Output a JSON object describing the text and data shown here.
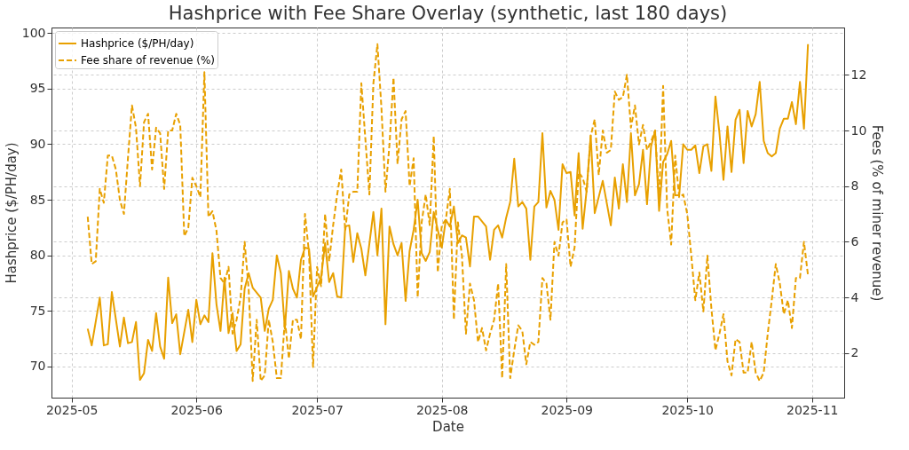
{
  "chart_data": {
    "type": "line",
    "title": "Hashprice with Fee Share Overlay (synthetic, last 180 days)",
    "xlabel": "Date",
    "ylabel": "Hashprice ($/PH/day)",
    "y2label": "Fees (% of miner revenue)",
    "xlim": [
      "2025-04-26",
      "2025-11-09"
    ],
    "xticks": [
      "2025-05",
      "2025-06",
      "2025-07",
      "2025-08",
      "2025-09",
      "2025-10",
      "2025-11"
    ],
    "ylim": [
      67.2,
      100.5
    ],
    "yticks": [
      70,
      75,
      80,
      85,
      90,
      95,
      100
    ],
    "y2lim": [
      0.4,
      13.7
    ],
    "y2ticks": [
      2,
      4,
      6,
      8,
      10,
      12
    ],
    "grid": true,
    "legend": "top left",
    "series": [
      {
        "name": "Hashprice ($/PH/day)",
        "color": "#e8a000",
        "line_style": "solid",
        "x": [
          "2025-05-05",
          "2025-05-06",
          "2025-05-08",
          "2025-05-09",
          "2025-05-10",
          "2025-05-11",
          "2025-05-13",
          "2025-05-14",
          "2025-05-15",
          "2025-05-16",
          "2025-05-17",
          "2025-05-18",
          "2025-05-19",
          "2025-05-20",
          "2025-05-21",
          "2025-05-22",
          "2025-05-23",
          "2025-05-24",
          "2025-05-25",
          "2025-05-26",
          "2025-05-27",
          "2025-05-28",
          "2025-05-30",
          "2025-05-31",
          "2025-06-01",
          "2025-06-02",
          "2025-06-03",
          "2025-06-04",
          "2025-06-05",
          "2025-06-06",
          "2025-06-07",
          "2025-06-08",
          "2025-06-09",
          "2025-06-10",
          "2025-06-11",
          "2025-06-12",
          "2025-06-13",
          "2025-06-14",
          "2025-06-15",
          "2025-06-17",
          "2025-06-18",
          "2025-06-19",
          "2025-06-20",
          "2025-06-21",
          "2025-06-22",
          "2025-06-23",
          "2025-06-24",
          "2025-06-25",
          "2025-06-26",
          "2025-06-27",
          "2025-06-28",
          "2025-06-29",
          "2025-06-30",
          "2025-07-02",
          "2025-07-03",
          "2025-07-04",
          "2025-07-05",
          "2025-07-06",
          "2025-07-07",
          "2025-07-08",
          "2025-07-09",
          "2025-07-10",
          "2025-07-11",
          "2025-07-12",
          "2025-07-13",
          "2025-07-15",
          "2025-07-16",
          "2025-07-17",
          "2025-07-18",
          "2025-07-19",
          "2025-07-20",
          "2025-07-21",
          "2025-07-22",
          "2025-07-23",
          "2025-07-24",
          "2025-07-25",
          "2025-07-26",
          "2025-07-27",
          "2025-07-28",
          "2025-07-29",
          "2025-07-30",
          "2025-07-31",
          "2025-08-01",
          "2025-08-02",
          "2025-08-03",
          "2025-08-04",
          "2025-08-05",
          "2025-08-06",
          "2025-08-07",
          "2025-08-08",
          "2025-08-09",
          "2025-08-10",
          "2025-08-12",
          "2025-08-13",
          "2025-08-14",
          "2025-08-15",
          "2025-08-16",
          "2025-08-17",
          "2025-08-18",
          "2025-08-19",
          "2025-08-20",
          "2025-08-21",
          "2025-08-22",
          "2025-08-23",
          "2025-08-24",
          "2025-08-25",
          "2025-08-26",
          "2025-08-27",
          "2025-08-28",
          "2025-08-29",
          "2025-08-30",
          "2025-08-31",
          "2025-09-01",
          "2025-09-02",
          "2025-09-03",
          "2025-09-04",
          "2025-09-05",
          "2025-09-06",
          "2025-09-07",
          "2025-09-08",
          "2025-09-10",
          "2025-09-12",
          "2025-09-13",
          "2025-09-14",
          "2025-09-15",
          "2025-09-16",
          "2025-09-17",
          "2025-09-18",
          "2025-09-19",
          "2025-09-20",
          "2025-09-21",
          "2025-09-22",
          "2025-09-23",
          "2025-09-24",
          "2025-09-25",
          "2025-09-26",
          "2025-09-27",
          "2025-09-28",
          "2025-09-29",
          "2025-09-30",
          "2025-10-01",
          "2025-10-02",
          "2025-10-03",
          "2025-10-04",
          "2025-10-05",
          "2025-10-06",
          "2025-10-07",
          "2025-10-08",
          "2025-10-09",
          "2025-10-10",
          "2025-10-11",
          "2025-10-12",
          "2025-10-13",
          "2025-10-14",
          "2025-10-15",
          "2025-10-16",
          "2025-10-17",
          "2025-10-18",
          "2025-10-19",
          "2025-10-20",
          "2025-10-21",
          "2025-10-22",
          "2025-10-23",
          "2025-10-24",
          "2025-10-25",
          "2025-10-26",
          "2025-10-27",
          "2025-10-28",
          "2025-10-29",
          "2025-10-30",
          "2025-10-31"
        ],
        "values": [
          73.4,
          71.9,
          76.2,
          71.9,
          72.0,
          76.7,
          71.8,
          74.4,
          72.1,
          72.2,
          74.0,
          68.8,
          69.4,
          72.4,
          71.4,
          74.8,
          71.8,
          70.7,
          78.0,
          73.9,
          74.7,
          71.1,
          75.1,
          72.2,
          76.0,
          73.8,
          74.6,
          74.0,
          80.2,
          75.6,
          73.2,
          78.0,
          73.0,
          74.8,
          71.4,
          72.0,
          77.0,
          78.4,
          77.1,
          76.2,
          73.2,
          75.2,
          76.0,
          80.0,
          78.4,
          73.4,
          78.6,
          77.0,
          76.2,
          79.6,
          80.7,
          80.6,
          76.3,
          78.0,
          81.1,
          77.6,
          78.4,
          76.3,
          76.2,
          82.6,
          82.7,
          79.4,
          82.0,
          80.6,
          78.2,
          83.9,
          80.0,
          84.2,
          73.8,
          82.6,
          81.0,
          80.0,
          81.1,
          75.9,
          80.4,
          82.3,
          85.0,
          80.2,
          79.5,
          80.3,
          83.9,
          82.3,
          80.7,
          83.2,
          82.6,
          84.4,
          81.1,
          81.8,
          81.6,
          79.0,
          83.5,
          83.5,
          82.6,
          79.6,
          82.3,
          82.7,
          81.6,
          83.4,
          84.8,
          88.7,
          84.4,
          84.8,
          84.2,
          79.6,
          84.4,
          84.8,
          91.0,
          84.3,
          85.8,
          85.0,
          82.3,
          88.2,
          87.4,
          87.5,
          83.6,
          89.2,
          82.4,
          85.9,
          90.8,
          83.8,
          86.7,
          82.7,
          87.0,
          84.2,
          88.2,
          84.8,
          91.0,
          85.4,
          86.4,
          89.5,
          84.6,
          89.8,
          91.2,
          84.0,
          88.4,
          89.1,
          90.3,
          85.4,
          85.4,
          90.0,
          89.5,
          89.5,
          89.9,
          87.4,
          89.8,
          90.0,
          87.6,
          94.3,
          91.0,
          86.8,
          91.6,
          87.5,
          92.2,
          93.1,
          88.3,
          93.0,
          91.6,
          92.7,
          95.6,
          90.3,
          89.2,
          88.9,
          89.2,
          91.4,
          92.3,
          92.3,
          93.8,
          91.8,
          95.6,
          91.4,
          99.0
        ]
      },
      {
        "name": "Fee share of revenue (%)",
        "color": "#e8a000",
        "line_style": "dashed",
        "axis": "y2",
        "x": [
          "2025-05-05",
          "2025-05-06",
          "2025-05-07",
          "2025-05-08",
          "2025-05-09",
          "2025-05-10",
          "2025-05-11",
          "2025-05-12",
          "2025-05-13",
          "2025-05-14",
          "2025-05-15",
          "2025-05-16",
          "2025-05-17",
          "2025-05-18",
          "2025-05-19",
          "2025-05-20",
          "2025-05-21",
          "2025-05-22",
          "2025-05-23",
          "2025-05-24",
          "2025-05-25",
          "2025-05-26",
          "2025-05-27",
          "2025-05-28",
          "2025-05-29",
          "2025-05-30",
          "2025-05-31",
          "2025-06-01",
          "2025-06-02",
          "2025-06-03",
          "2025-06-04",
          "2025-06-05",
          "2025-06-06",
          "2025-06-07",
          "2025-06-08",
          "2025-06-09",
          "2025-06-10",
          "2025-06-11",
          "2025-06-12",
          "2025-06-13",
          "2025-06-14",
          "2025-06-15",
          "2025-06-16",
          "2025-06-17",
          "2025-06-18",
          "2025-06-19",
          "2025-06-20",
          "2025-06-21",
          "2025-06-22",
          "2025-06-23",
          "2025-06-24",
          "2025-06-25",
          "2025-06-26",
          "2025-06-27",
          "2025-06-28",
          "2025-06-29",
          "2025-06-30",
          "2025-07-01",
          "2025-07-02",
          "2025-07-03",
          "2025-07-04",
          "2025-07-05",
          "2025-07-06",
          "2025-07-07",
          "2025-07-08",
          "2025-07-09",
          "2025-07-10",
          "2025-07-11",
          "2025-07-12",
          "2025-07-13",
          "2025-07-14",
          "2025-07-15",
          "2025-07-16",
          "2025-07-17",
          "2025-07-18",
          "2025-07-19",
          "2025-07-20",
          "2025-07-21",
          "2025-07-22",
          "2025-07-23",
          "2025-07-24",
          "2025-07-25",
          "2025-07-26",
          "2025-07-27",
          "2025-07-28",
          "2025-07-29",
          "2025-07-30",
          "2025-07-31",
          "2025-08-01",
          "2025-08-02",
          "2025-08-03",
          "2025-08-04",
          "2025-08-05",
          "2025-08-06",
          "2025-08-07",
          "2025-08-08",
          "2025-08-09",
          "2025-08-10",
          "2025-08-11",
          "2025-08-12",
          "2025-08-13",
          "2025-08-14",
          "2025-08-15",
          "2025-08-16",
          "2025-08-17",
          "2025-08-18",
          "2025-08-19",
          "2025-08-20",
          "2025-08-21",
          "2025-08-22",
          "2025-08-23",
          "2025-08-24",
          "2025-08-25",
          "2025-08-26",
          "2025-08-27",
          "2025-08-28",
          "2025-08-29",
          "2025-08-30",
          "2025-08-31",
          "2025-09-01",
          "2025-09-02",
          "2025-09-03",
          "2025-09-04",
          "2025-09-05",
          "2025-09-06",
          "2025-09-07",
          "2025-09-08",
          "2025-09-09",
          "2025-09-10",
          "2025-09-11",
          "2025-09-12",
          "2025-09-13",
          "2025-09-14",
          "2025-09-15",
          "2025-09-16",
          "2025-09-17",
          "2025-09-18",
          "2025-09-19",
          "2025-09-20",
          "2025-09-21",
          "2025-09-22",
          "2025-09-23",
          "2025-09-24",
          "2025-09-25",
          "2025-09-26",
          "2025-09-27",
          "2025-09-28",
          "2025-09-29",
          "2025-09-30",
          "2025-10-01",
          "2025-10-02",
          "2025-10-03",
          "2025-10-04",
          "2025-10-05",
          "2025-10-06",
          "2025-10-07",
          "2025-10-08",
          "2025-10-09",
          "2025-10-10",
          "2025-10-11",
          "2025-10-12",
          "2025-10-13",
          "2025-10-14",
          "2025-10-15",
          "2025-10-16",
          "2025-10-17",
          "2025-10-18",
          "2025-10-19",
          "2025-10-20",
          "2025-10-21",
          "2025-10-22",
          "2025-10-23",
          "2025-10-24",
          "2025-10-25",
          "2025-10-26",
          "2025-10-27",
          "2025-10-28",
          "2025-10-29",
          "2025-10-30",
          "2025-10-31"
        ],
        "values": [
          6.9,
          5.2,
          5.3,
          7.9,
          7.4,
          9.1,
          9.1,
          8.6,
          7.5,
          7.0,
          9.0,
          10.9,
          10.1,
          8.0,
          10.3,
          10.6,
          8.6,
          10.1,
          9.9,
          7.9,
          10.0,
          10.0,
          10.6,
          10.2,
          6.2,
          6.5,
          8.3,
          8.0,
          7.6,
          12.1,
          6.9,
          7.1,
          6.4,
          4.7,
          4.5,
          5.1,
          2.7,
          3.2,
          4.0,
          6.0,
          4.3,
          1.0,
          3.2,
          1.0,
          1.2,
          3.2,
          2.4,
          1.1,
          1.1,
          3.2,
          1.8,
          3.2,
          3.2,
          2.5,
          7.0,
          5.6,
          1.5,
          5.1,
          4.4,
          7.0,
          5.3,
          6.6,
          7.7,
          8.6,
          6.4,
          7.7,
          7.8,
          7.8,
          11.7,
          9.7,
          7.7,
          11.7,
          13.1,
          10.8,
          7.8,
          9.5,
          11.9,
          8.8,
          10.4,
          10.7,
          8.0,
          9.0,
          4.0,
          6.7,
          7.7,
          6.6,
          9.8,
          4.9,
          6.6,
          6.8,
          7.9,
          3.2,
          6.7,
          5.5,
          2.7,
          4.5,
          3.9,
          2.4,
          2.9,
          2.1,
          2.7,
          3.2,
          4.5,
          1.1,
          5.2,
          1.1,
          2.1,
          3.0,
          2.8,
          1.6,
          2.4,
          2.3,
          2.4,
          4.7,
          4.5,
          3.2,
          6.0,
          5.5,
          6.7,
          6.8,
          5.1,
          5.8,
          8.5,
          8.3,
          7.8,
          9.8,
          10.4,
          8.4,
          10.0,
          9.2,
          9.3,
          11.4,
          11.1,
          11.2,
          12.0,
          10.1,
          10.9,
          9.5,
          10.2,
          9.3,
          9.6,
          10.0,
          7.5,
          11.6,
          7.2,
          5.9,
          9.1,
          7.6,
          7.7,
          7.0,
          5.5,
          3.9,
          4.9,
          3.5,
          5.5,
          3.6,
          2.1,
          2.7,
          3.4,
          1.7,
          1.2,
          2.5,
          2.4,
          1.3,
          1.3,
          2.4,
          1.3,
          1.0,
          1.3,
          2.7,
          3.9,
          5.2,
          4.5,
          3.4,
          3.9,
          2.9,
          4.7,
          4.7,
          6.0,
          4.8
        ]
      }
    ]
  }
}
